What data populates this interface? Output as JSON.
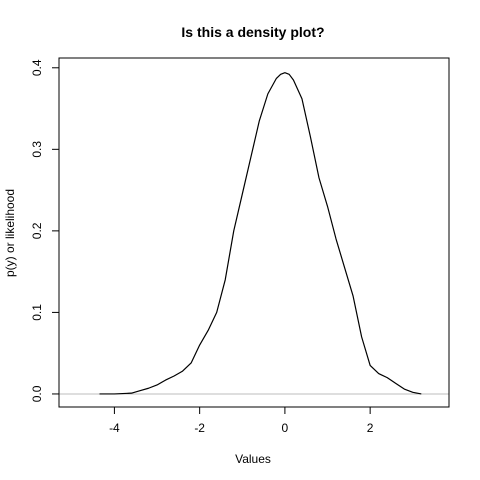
{
  "chart_data": {
    "type": "line",
    "title": "Is this a density plot?",
    "xlabel": "Values",
    "ylabel": "p(y) or likelihood",
    "xlim": [
      -5.3,
      3.85
    ],
    "ylim": [
      -0.016,
      0.412
    ],
    "x_ticks": [
      -4,
      -2,
      0,
      2
    ],
    "x_tick_labels": [
      "-4",
      "-2",
      "0",
      "2"
    ],
    "y_ticks": [
      0.0,
      0.1,
      0.2,
      0.3,
      0.4
    ],
    "y_tick_labels": [
      "0.0",
      "0.1",
      "0.2",
      "0.3",
      "0.4"
    ],
    "grid": false,
    "box": true,
    "reference_line": {
      "y": 0,
      "color": "#bebebe"
    },
    "series": [
      {
        "color": "#000000",
        "x": [
          -4.35,
          -4.0,
          -3.6,
          -3.4,
          -3.2,
          -3.0,
          -2.8,
          -2.6,
          -2.4,
          -2.2,
          -2.0,
          -1.8,
          -1.6,
          -1.4,
          -1.2,
          -1.0,
          -0.8,
          -0.6,
          -0.4,
          -0.2,
          -0.1,
          0.0,
          0.1,
          0.2,
          0.4,
          0.6,
          0.8,
          1.0,
          1.2,
          1.4,
          1.6,
          1.8,
          2.0,
          2.2,
          2.4,
          2.6,
          2.8,
          3.0,
          3.2
        ],
        "y": [
          0.0,
          0.0,
          0.001,
          0.004,
          0.007,
          0.011,
          0.017,
          0.022,
          0.028,
          0.038,
          0.06,
          0.078,
          0.1,
          0.14,
          0.2,
          0.245,
          0.29,
          0.335,
          0.368,
          0.387,
          0.392,
          0.394,
          0.392,
          0.385,
          0.362,
          0.315,
          0.265,
          0.23,
          0.19,
          0.155,
          0.12,
          0.07,
          0.035,
          0.025,
          0.02,
          0.013,
          0.006,
          0.002,
          0.0
        ]
      }
    ]
  }
}
